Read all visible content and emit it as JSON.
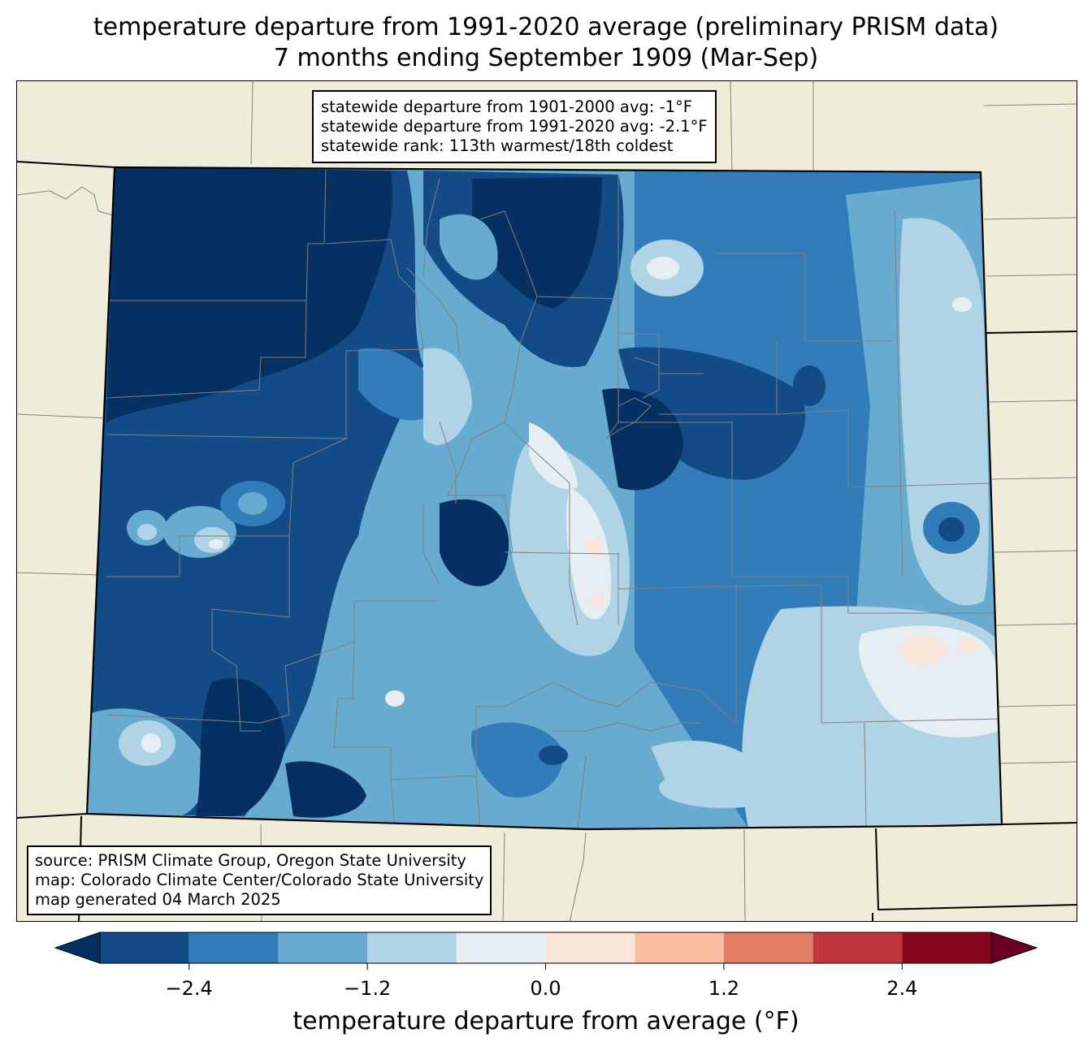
{
  "title": {
    "line1": "temperature departure from 1991-2020 average (preliminary PRISM data)",
    "line2": "7 months ending September 1909 (Mar-Sep)"
  },
  "stats": {
    "line1": "statewide departure from 1901-2000 avg: -1°F",
    "line2": "statewide departure from 1991-2020 avg: -2.1°F",
    "line3": "statewide rank: 113th warmest/18th coldest"
  },
  "source": {
    "line1": "source: PRISM Climate Group, Oregon State University",
    "line2": "map: Colorado Climate Center/Colorado State University",
    "line3": "map generated 04 March 2025"
  },
  "colorbar": {
    "label": "temperature departure from average (°F)",
    "range": [
      -3.0,
      3.0
    ],
    "levels": [
      -3.0,
      -2.4,
      -1.8,
      -1.2,
      -0.6,
      0.0,
      0.6,
      1.2,
      1.8,
      2.4,
      3.0
    ],
    "colors": [
      "#134b87",
      "#327cba",
      "#68abd0",
      "#b0d4e6",
      "#e6eef4",
      "#f9e5da",
      "#f9bca1",
      "#e27e65",
      "#c0373b",
      "#87061d"
    ],
    "under_color": "#063062",
    "over_color": "#6a0021",
    "ticks": [
      "−2.4",
      "−1.2",
      "0.0",
      "1.2",
      "2.4"
    ],
    "tick_values": [
      -2.4,
      -1.2,
      0.0,
      1.2,
      2.4
    ]
  },
  "map_colors": {
    "background": "#efedda",
    "state_border": "#000000",
    "county_border": "#808080"
  }
}
